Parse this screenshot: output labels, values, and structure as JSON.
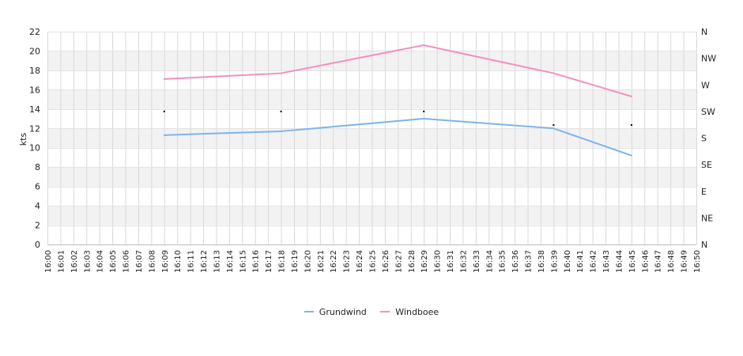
{
  "chart_data": {
    "type": "line",
    "title": "",
    "ylabel": "kts",
    "ylim": [
      0,
      22
    ],
    "yticks": [
      0,
      2,
      4,
      6,
      8,
      10,
      12,
      14,
      16,
      18,
      20,
      22
    ],
    "x_start_minute": 0,
    "x_end_minute": 50,
    "x_tick_labels": [
      "16:00",
      "16:01",
      "16:02",
      "16:03",
      "16:04",
      "16:05",
      "16:06",
      "16:07",
      "16:08",
      "16:09",
      "16:10",
      "16:11",
      "16:12",
      "16:13",
      "16:14",
      "16:15",
      "16:16",
      "16:17",
      "16:18",
      "16:19",
      "16:20",
      "16:21",
      "16:22",
      "16:23",
      "16:24",
      "16:25",
      "16:26",
      "16:27",
      "16:28",
      "16:29",
      "16:30",
      "16:31",
      "16:32",
      "16:33",
      "16:34",
      "16:35",
      "16:36",
      "16:37",
      "16:38",
      "16:39",
      "16:40",
      "16:41",
      "16:42",
      "16:43",
      "16:44",
      "16:45",
      "16:46",
      "16:47",
      "16:48",
      "16:49",
      "16:50"
    ],
    "right_axis_labels": [
      "N",
      "NE",
      "E",
      "SE",
      "S",
      "SW",
      "W",
      "NW",
      "N"
    ],
    "right_axis_range": [
      0,
      360
    ],
    "series": [
      {
        "name": "Grundwind",
        "color": "#7cb5ec",
        "x": [
          "16:09",
          "16:18",
          "16:29",
          "16:39",
          "16:45"
        ],
        "values": [
          11.3,
          11.7,
          13.0,
          12.0,
          9.2
        ]
      },
      {
        "name": "Windboee",
        "color": "#f48fbf",
        "x": [
          "16:09",
          "16:18",
          "16:29",
          "16:39",
          "16:45"
        ],
        "values": [
          17.1,
          17.7,
          20.6,
          17.7,
          15.3
        ]
      }
    ],
    "direction": {
      "x": [
        "16:09",
        "16:18",
        "16:29",
        "16:39",
        "16:45"
      ],
      "degrees": [
        225,
        225,
        225,
        202,
        202
      ]
    },
    "grid": true,
    "legend_position": "bottom-center"
  }
}
